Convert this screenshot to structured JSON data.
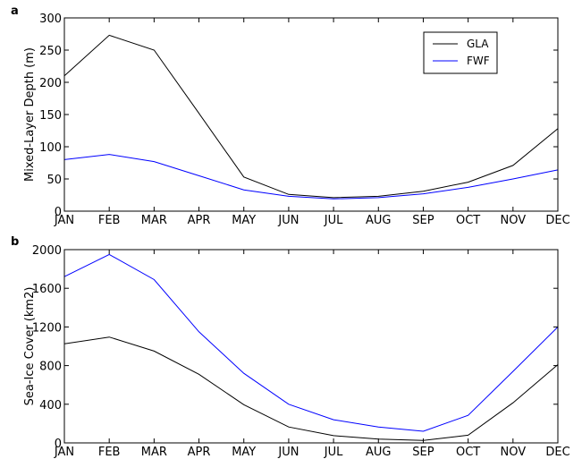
{
  "chart_data": [
    {
      "panel": "a",
      "type": "line",
      "categories": [
        "JAN",
        "FEB",
        "MAR",
        "APR",
        "MAY",
        "JUN",
        "JUL",
        "AUG",
        "SEP",
        "OCT",
        "NOV",
        "DEC"
      ],
      "ylabel": "Mixed-Layer Depth (m)",
      "xlabel": "",
      "ylim": [
        0,
        300
      ],
      "yticks": [
        0,
        50,
        100,
        150,
        200,
        250,
        300
      ],
      "grid": false,
      "legend": "top-right",
      "series": [
        {
          "name": "GLA",
          "color": "#000000",
          "values": [
            210,
            273,
            250,
            152,
            53,
            26,
            21,
            23,
            31,
            45,
            71,
            128
          ]
        },
        {
          "name": "FWF",
          "color": "#0000ff",
          "values": [
            80,
            88,
            77,
            55,
            33,
            23,
            19,
            21,
            27,
            37,
            50,
            64
          ]
        }
      ]
    },
    {
      "panel": "b",
      "type": "line",
      "categories": [
        "JAN",
        "FEB",
        "MAR",
        "APR",
        "MAY",
        "JUN",
        "JUL",
        "AUG",
        "SEP",
        "OCT",
        "NOV",
        "DEC"
      ],
      "ylabel": "Sea-Ice Cover (km2)",
      "xlabel": "",
      "ylim": [
        0,
        2000
      ],
      "yticks": [
        0,
        400,
        800,
        1200,
        1600,
        2000
      ],
      "grid": false,
      "legend": "none",
      "series": [
        {
          "name": "GLA",
          "color": "#000000",
          "values": [
            1025,
            1095,
            950,
            710,
            395,
            165,
            75,
            40,
            25,
            80,
            415,
            810
          ]
        },
        {
          "name": "FWF",
          "color": "#0000ff",
          "values": [
            1720,
            1950,
            1690,
            1150,
            720,
            400,
            240,
            165,
            120,
            285,
            740,
            1200
          ]
        }
      ]
    }
  ]
}
